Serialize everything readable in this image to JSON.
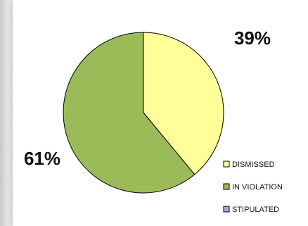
{
  "chart_data": {
    "type": "pie",
    "title": "",
    "categories": [
      "DISMISSED",
      "IN VIOLATION",
      "STIPULATED"
    ],
    "values": [
      39,
      61,
      0
    ],
    "labels": [
      "39%",
      "61%",
      ""
    ],
    "colors": [
      "#ffff99",
      "#9bbb59",
      "#a9a6d8"
    ],
    "legend_position": "right"
  }
}
